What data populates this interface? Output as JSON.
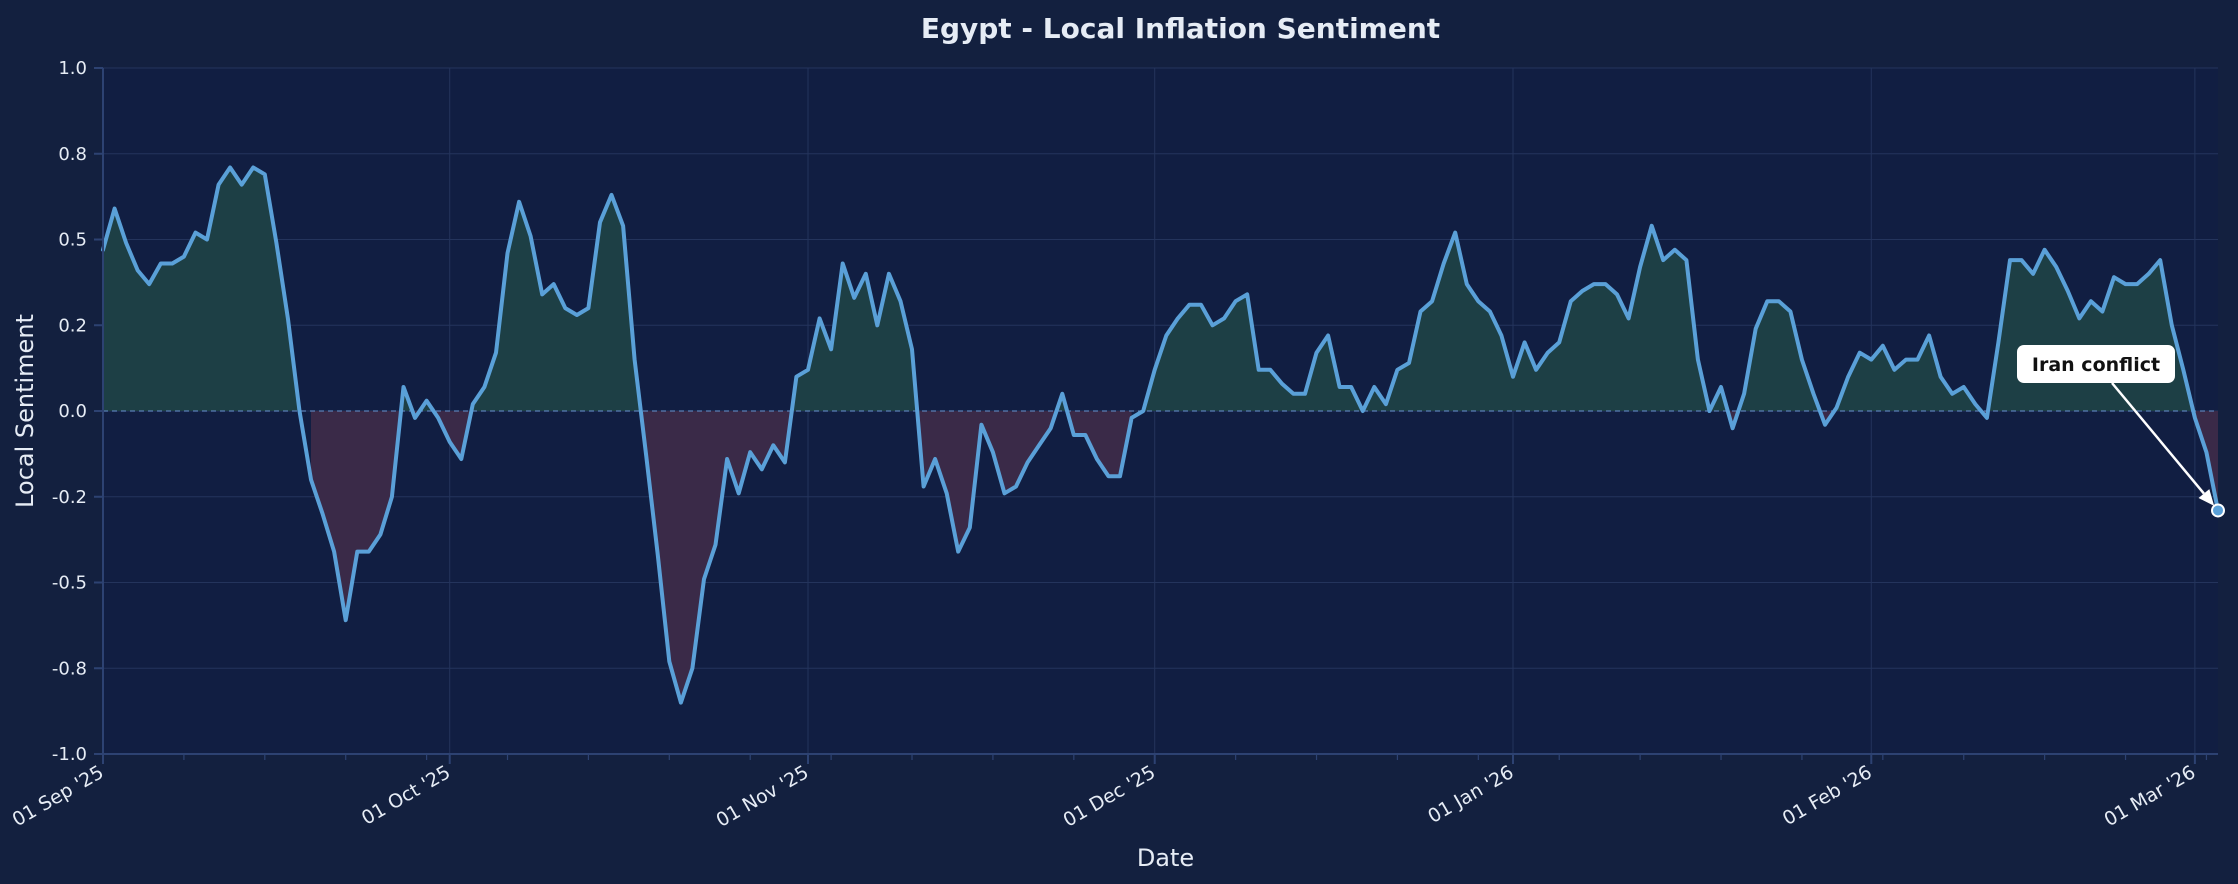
{
  "chart_data": {
    "type": "line",
    "title": "Egypt - Local Inflation Sentiment",
    "xlabel": "Date",
    "ylabel": "Local Sentiment",
    "xlim": [
      "2025-09-01",
      "2026-03-03"
    ],
    "ylim": [
      -1.0,
      1.0
    ],
    "y_ticks": [
      1.0,
      0.75,
      0.5,
      0.25,
      0.0,
      -0.25,
      -0.5,
      -0.75,
      -1.0
    ],
    "y_tick_labels": [
      "1.0",
      "0.8",
      "0.5",
      "0.2",
      "0.0",
      "-0.2",
      "-0.5",
      "-0.8",
      "-1.0"
    ],
    "x_ticks": [
      "2025-09-01",
      "2025-10-01",
      "2025-11-01",
      "2025-12-01",
      "2026-01-01",
      "2026-02-01",
      "2026-03-01"
    ],
    "x_tick_labels": [
      "01 Sep '25",
      "01 Oct '25",
      "01 Nov '25",
      "01 Dec '25",
      "01 Jan '26",
      "01 Feb '26",
      "01 Mar '26"
    ],
    "grid": true,
    "zero_line": true,
    "colors": {
      "background": "#13203f",
      "plot_background": "#111e42",
      "line": "#5aa0d8",
      "positive_fill": "#1d3f45",
      "negative_fill": "#3a2a48",
      "grid": "#24345c",
      "text": "#e6ecf5",
      "axis": "#2d4272",
      "zero_line": "#5a7fb5"
    },
    "annotation": {
      "text": "Iran conflict",
      "date": "2026-03-03",
      "value": -0.29
    },
    "series": [
      {
        "dates": [
          "2025-09-01",
          "2025-09-02",
          "2025-09-03",
          "2025-09-04",
          "2025-09-05",
          "2025-09-06",
          "2025-09-07",
          "2025-09-08",
          "2025-09-09",
          "2025-09-10",
          "2025-09-11",
          "2025-09-12",
          "2025-09-13",
          "2025-09-14",
          "2025-09-15",
          "2025-09-16",
          "2025-09-17",
          "2025-09-18",
          "2025-09-19",
          "2025-09-20",
          "2025-09-21",
          "2025-09-22",
          "2025-09-23",
          "2025-09-24",
          "2025-09-25",
          "2025-09-26",
          "2025-09-27",
          "2025-09-28",
          "2025-09-29",
          "2025-09-30",
          "2025-10-01",
          "2025-10-02",
          "2025-10-03",
          "2025-10-04",
          "2025-10-05",
          "2025-10-06",
          "2025-10-07",
          "2025-10-08",
          "2025-10-09",
          "2025-10-10",
          "2025-10-11",
          "2025-10-12",
          "2025-10-13",
          "2025-10-14",
          "2025-10-15",
          "2025-10-16",
          "2025-10-17",
          "2025-10-18",
          "2025-10-19",
          "2025-10-20",
          "2025-10-21",
          "2025-10-22",
          "2025-10-23",
          "2025-10-24",
          "2025-10-25",
          "2025-10-26",
          "2025-10-27",
          "2025-10-28",
          "2025-10-29",
          "2025-10-30",
          "2025-10-31",
          "2025-11-01",
          "2025-11-02",
          "2025-11-03",
          "2025-11-04",
          "2025-11-05",
          "2025-11-06",
          "2025-11-07",
          "2025-11-08",
          "2025-11-09",
          "2025-11-10",
          "2025-11-11",
          "2025-11-12",
          "2025-11-13",
          "2025-11-14",
          "2025-11-15",
          "2025-11-16",
          "2025-11-17",
          "2025-11-18",
          "2025-11-19",
          "2025-11-20",
          "2025-11-21",
          "2025-11-22",
          "2025-11-23",
          "2025-11-24",
          "2025-11-25",
          "2025-11-26",
          "2025-11-27",
          "2025-11-28",
          "2025-11-29",
          "2025-11-30",
          "2025-12-01",
          "2025-12-02",
          "2025-12-03",
          "2025-12-04",
          "2025-12-05",
          "2025-12-06",
          "2025-12-07",
          "2025-12-08",
          "2025-12-09",
          "2025-12-10",
          "2025-12-11",
          "2025-12-12",
          "2025-12-13",
          "2025-12-14",
          "2025-12-15",
          "2025-12-16",
          "2025-12-17",
          "2025-12-18",
          "2025-12-19",
          "2025-12-20",
          "2025-12-21",
          "2025-12-22",
          "2025-12-23",
          "2025-12-24",
          "2025-12-25",
          "2025-12-26",
          "2025-12-27",
          "2025-12-28",
          "2025-12-29",
          "2025-12-30",
          "2025-12-31",
          "2026-01-01",
          "2026-01-02",
          "2026-01-03",
          "2026-01-04",
          "2026-01-05",
          "2026-01-06",
          "2026-01-07",
          "2026-01-08",
          "2026-01-09",
          "2026-01-10",
          "2026-01-11",
          "2026-01-12",
          "2026-01-13",
          "2026-01-14",
          "2026-01-15",
          "2026-01-16",
          "2026-01-17",
          "2026-01-18",
          "2026-01-19",
          "2026-01-20",
          "2026-01-21",
          "2026-01-22",
          "2026-01-23",
          "2026-01-24",
          "2026-01-25",
          "2026-01-26",
          "2026-01-27",
          "2026-01-28",
          "2026-01-29",
          "2026-01-30",
          "2026-01-31",
          "2026-02-01",
          "2026-02-02",
          "2026-02-03",
          "2026-02-04",
          "2026-02-05",
          "2026-02-06",
          "2026-02-07",
          "2026-02-08",
          "2026-02-09",
          "2026-02-10",
          "2026-02-11",
          "2026-02-12",
          "2026-02-13",
          "2026-02-14",
          "2026-02-15",
          "2026-02-16",
          "2026-02-17",
          "2026-02-18",
          "2026-02-19",
          "2026-02-20",
          "2026-02-21",
          "2026-02-22",
          "2026-02-23",
          "2026-02-24",
          "2026-02-25",
          "2026-02-26",
          "2026-02-27",
          "2026-02-28",
          "2026-03-01",
          "2026-03-02",
          "2026-03-03"
        ],
        "values": [
          0.47,
          0.59,
          0.49,
          0.41,
          0.37,
          0.43,
          0.43,
          0.45,
          0.52,
          0.5,
          0.66,
          0.71,
          0.66,
          0.71,
          0.69,
          0.49,
          0.27,
          0.0,
          -0.2,
          -0.3,
          -0.41,
          -0.61,
          -0.41,
          -0.41,
          -0.36,
          -0.25,
          0.07,
          -0.02,
          0.03,
          -0.02,
          -0.09,
          -0.14,
          0.02,
          0.07,
          0.17,
          0.46,
          0.61,
          0.51,
          0.34,
          0.37,
          0.3,
          0.28,
          0.3,
          0.55,
          0.63,
          0.54,
          0.15,
          -0.13,
          -0.42,
          -0.73,
          -0.85,
          -0.75,
          -0.49,
          -0.39,
          -0.14,
          -0.24,
          -0.12,
          -0.17,
          -0.1,
          -0.15,
          0.1,
          0.12,
          0.27,
          0.18,
          0.43,
          0.33,
          0.4,
          0.25,
          0.4,
          0.32,
          0.18,
          -0.22,
          -0.14,
          -0.24,
          -0.41,
          -0.34,
          -0.04,
          -0.12,
          -0.24,
          -0.22,
          -0.15,
          -0.1,
          -0.05,
          0.05,
          -0.07,
          -0.07,
          -0.14,
          -0.19,
          -0.19,
          -0.02,
          0.0,
          0.12,
          0.22,
          0.27,
          0.31,
          0.31,
          0.25,
          0.27,
          0.32,
          0.34,
          0.12,
          0.12,
          0.08,
          0.05,
          0.05,
          0.17,
          0.22,
          0.07,
          0.07,
          0.0,
          0.07,
          0.02,
          0.12,
          0.14,
          0.29,
          0.32,
          0.43,
          0.52,
          0.37,
          0.32,
          0.29,
          0.22,
          0.1,
          0.2,
          0.12,
          0.17,
          0.2,
          0.32,
          0.35,
          0.37,
          0.37,
          0.34,
          0.27,
          0.42,
          0.54,
          0.44,
          0.47,
          0.44,
          0.15,
          0.0,
          0.07,
          -0.05,
          0.05,
          0.24,
          0.32,
          0.32,
          0.29,
          0.15,
          0.05,
          -0.04,
          0.01,
          0.1,
          0.17,
          0.15,
          0.19,
          0.12,
          0.15,
          0.15,
          0.22,
          0.1,
          0.05,
          0.07,
          0.02,
          -0.02,
          0.2,
          0.44,
          0.44,
          0.4,
          0.47,
          0.42,
          0.35,
          0.27,
          0.32,
          0.29,
          0.39,
          0.37,
          0.37,
          0.4,
          0.44,
          0.25,
          0.12,
          -0.02,
          -0.12,
          -0.29
        ]
      }
    ]
  }
}
